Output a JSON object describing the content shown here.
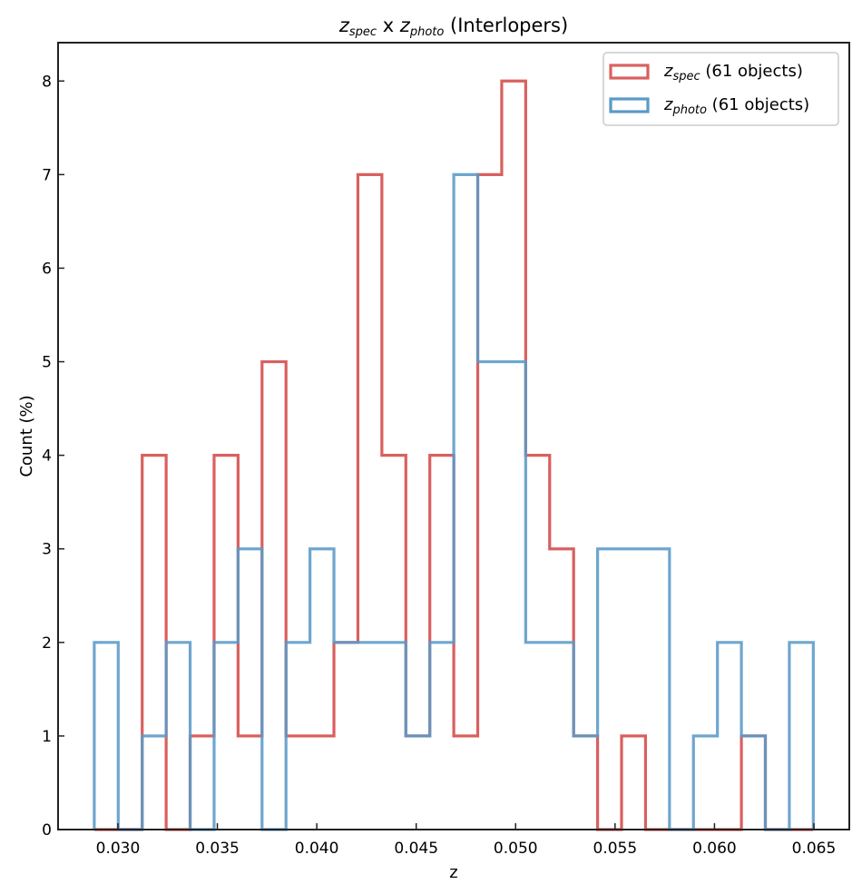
{
  "chart_data": {
    "type": "histogram",
    "title": {
      "main_symbol": "z",
      "main_subscript": "spec",
      "connector": " x ",
      "second_symbol": "z",
      "second_subscript": "photo",
      "suffix": " (Interlopers)"
    },
    "xlabel": "z",
    "ylabel": "Count (%)",
    "xlim": [
      0.02699,
      0.06678
    ],
    "ylim": [
      0,
      8.41
    ],
    "x_ticks": [
      0.03,
      0.035,
      0.04,
      0.045,
      0.05,
      0.055,
      0.06,
      0.065
    ],
    "x_tick_labels": [
      "0.030",
      "0.035",
      "0.040",
      "0.045",
      "0.050",
      "0.055",
      "0.060",
      "0.065"
    ],
    "y_ticks": [
      0,
      1,
      2,
      3,
      4,
      5,
      6,
      7,
      8
    ],
    "y_tick_labels": [
      "0",
      "1",
      "2",
      "3",
      "4",
      "5",
      "6",
      "7",
      "8"
    ],
    "tick_direction": "in",
    "grid": false,
    "legend_position": "top-right",
    "bins": {
      "start": 0.02881,
      "end": 0.06497,
      "count": 30
    },
    "series": [
      {
        "name": "z_spec",
        "legend_symbol": "z",
        "legend_subscript": "spec",
        "legend_suffix": " (61 objects)",
        "color": "#d9605f",
        "histtype": "step",
        "values": [
          0,
          0,
          4,
          0,
          1,
          4,
          1,
          5,
          1,
          1,
          2,
          7,
          4,
          1,
          4,
          1,
          7,
          8,
          4,
          3,
          1,
          0,
          1,
          0,
          0,
          0,
          0,
          1,
          0,
          0
        ]
      },
      {
        "name": "z_photo",
        "legend_symbol": "z",
        "legend_subscript": "photo",
        "legend_suffix": " (61 objects)",
        "color": "#5a9ac8",
        "histtype": "step",
        "values": [
          2,
          0,
          1,
          2,
          0,
          2,
          3,
          0,
          2,
          3,
          2,
          2,
          2,
          1,
          2,
          7,
          5,
          5,
          2,
          2,
          1,
          3,
          3,
          3,
          0,
          1,
          2,
          1,
          0,
          2
        ]
      }
    ]
  }
}
